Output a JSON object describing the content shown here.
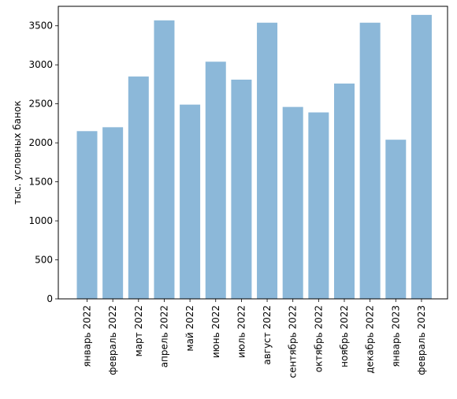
{
  "chart_data": {
    "type": "bar",
    "title": "",
    "xlabel": "",
    "ylabel": "тыс. условных банок",
    "categories": [
      "январь 2022",
      "февраль 2022",
      "март 2022",
      "апрель 2022",
      "май 2022",
      "июнь 2022",
      "июль 2022",
      "август 2022",
      "сентябрь 2022",
      "октябрь 2022",
      "ноябрь 2022",
      "декабрь 2022",
      "январь 2023",
      "февраль 2023"
    ],
    "values": [
      2150,
      2200,
      2850,
      3570,
      2490,
      3040,
      2810,
      3540,
      2460,
      2390,
      2760,
      3540,
      2040,
      3640
    ],
    "ylim": [
      0,
      3750
    ],
    "yticks": [
      0,
      500,
      1000,
      1500,
      2000,
      2500,
      3000,
      3500
    ],
    "bar_color": "#8cb8d9",
    "grid": false,
    "legend": "none"
  }
}
